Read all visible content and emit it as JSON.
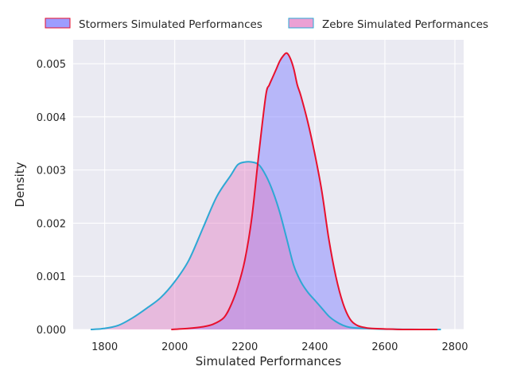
{
  "chart_data": {
    "type": "area",
    "xlabel": "Simulated Performances",
    "ylabel": "Density",
    "xlim": [
      1710,
      2825
    ],
    "ylim": [
      0,
      0.00545
    ],
    "x_ticks": [
      1800,
      2000,
      2200,
      2400,
      2600,
      2800
    ],
    "y_ticks": [
      0.0,
      0.001,
      0.002,
      0.003,
      0.004,
      0.005
    ],
    "y_tick_labels": [
      "0.000",
      "0.001",
      "0.002",
      "0.003",
      "0.004",
      "0.005"
    ],
    "grid": true,
    "legend_position": "top",
    "series": [
      {
        "name": "Stormers Simulated Performances",
        "fill_color": "#8c8cff",
        "line_color": "#e8102d",
        "x": [
          1990,
          2040,
          2080,
          2110,
          2140,
          2160,
          2180,
          2200,
          2220,
          2240,
          2260,
          2270,
          2280,
          2290,
          2300,
          2310,
          2320,
          2330,
          2340,
          2350,
          2360,
          2380,
          2400,
          2420,
          2440,
          2460,
          2480,
          2500,
          2520,
          2540,
          2560,
          2600,
          2650,
          2700,
          2750
        ],
        "y": [
          0.0,
          2e-05,
          5e-05,
          0.0001,
          0.00022,
          0.00045,
          0.0008,
          0.0013,
          0.0021,
          0.0033,
          0.0044,
          0.0046,
          0.00475,
          0.0049,
          0.00505,
          0.00515,
          0.0052,
          0.0051,
          0.0049,
          0.0046,
          0.0044,
          0.0039,
          0.0033,
          0.0026,
          0.0017,
          0.001,
          0.0005,
          0.0002,
          8e-05,
          4e-05,
          2e-05,
          1e-05,
          0.0,
          0.0,
          0.0
        ]
      },
      {
        "name": "Zebre Simulated Performances",
        "fill_color": "#e377c2",
        "line_color": "#2ea8d4",
        "x": [
          1760,
          1800,
          1840,
          1880,
          1920,
          1960,
          2000,
          2040,
          2080,
          2120,
          2160,
          2180,
          2200,
          2220,
          2240,
          2260,
          2280,
          2300,
          2320,
          2340,
          2360,
          2380,
          2400,
          2420,
          2440,
          2460,
          2480,
          2500,
          2540,
          2580,
          2620,
          2660,
          2700,
          2760
        ],
        "y": [
          0.0,
          2e-05,
          8e-05,
          0.00022,
          0.0004,
          0.0006,
          0.0009,
          0.0013,
          0.0019,
          0.0025,
          0.0029,
          0.0031,
          0.00315,
          0.00315,
          0.0031,
          0.0029,
          0.0026,
          0.0022,
          0.0017,
          0.0012,
          0.0009,
          0.0007,
          0.00055,
          0.0004,
          0.00025,
          0.00015,
          8e-05,
          4e-05,
          2e-05,
          1e-05,
          5e-06,
          2e-06,
          0.0,
          0.0
        ]
      }
    ]
  }
}
